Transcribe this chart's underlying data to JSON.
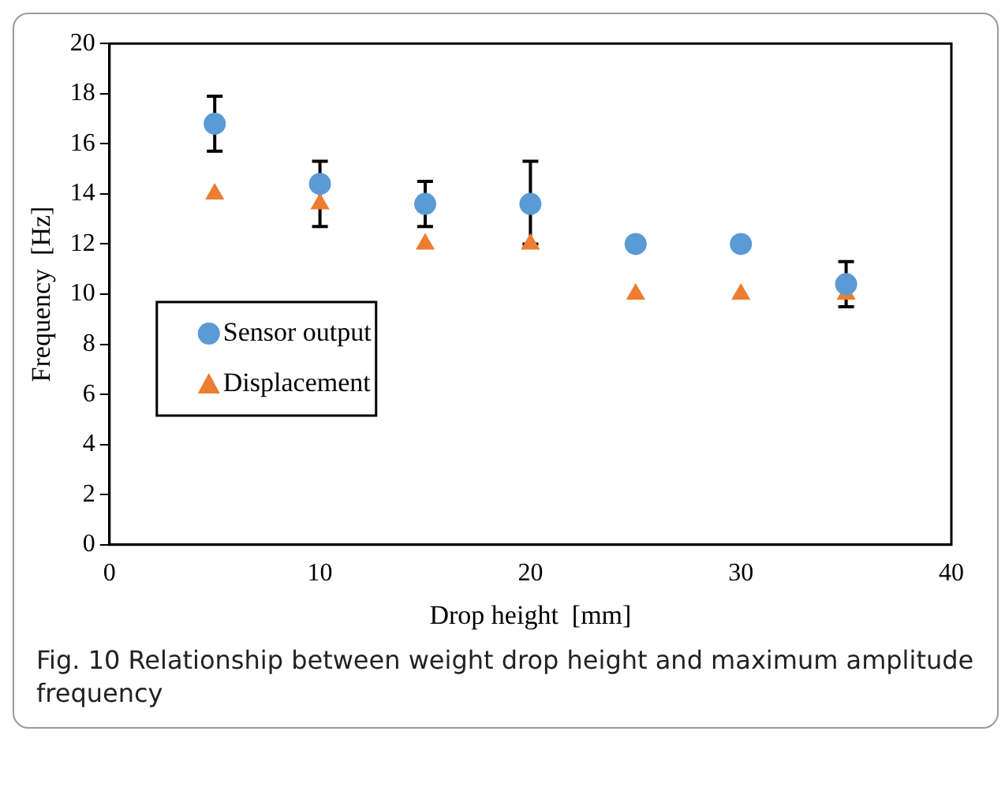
{
  "chart_data": {
    "type": "scatter",
    "xlabel": "Drop height  [mm]",
    "ylabel": "Frequency  [Hz]",
    "xlim": [
      0,
      40
    ],
    "xticks": [
      0,
      10,
      20,
      30,
      40
    ],
    "ylim": [
      0,
      20
    ],
    "yticks": [
      0,
      2,
      4,
      6,
      8,
      10,
      12,
      14,
      16,
      18,
      20
    ],
    "grid": false,
    "legend": "left",
    "series": [
      {
        "name": "Sensor output",
        "color": "#5b9bd5",
        "marker": "circle",
        "x": [
          5,
          10,
          15,
          20,
          25,
          30,
          35
        ],
        "values": [
          16.8,
          14.4,
          13.6,
          13.6,
          12,
          12,
          10.4
        ],
        "errors": [
          [
            15.7,
            17.9
          ],
          [
            12.7,
            15.3
          ],
          [
            12.7,
            14.5
          ],
          [
            12,
            15.3
          ],
          null,
          null,
          [
            9.5,
            11.3
          ]
        ]
      },
      {
        "name": "Displacement",
        "color": "#ed7d31",
        "marker": "triangle",
        "x": [
          5,
          10,
          15,
          20,
          25,
          30,
          35
        ],
        "values": [
          14,
          13.6,
          12,
          12,
          10,
          10,
          10
        ]
      }
    ],
    "annotations": [
      "Fig. 10  Relationship between weight drop height and maximum amplitude frequency"
    ]
  }
}
